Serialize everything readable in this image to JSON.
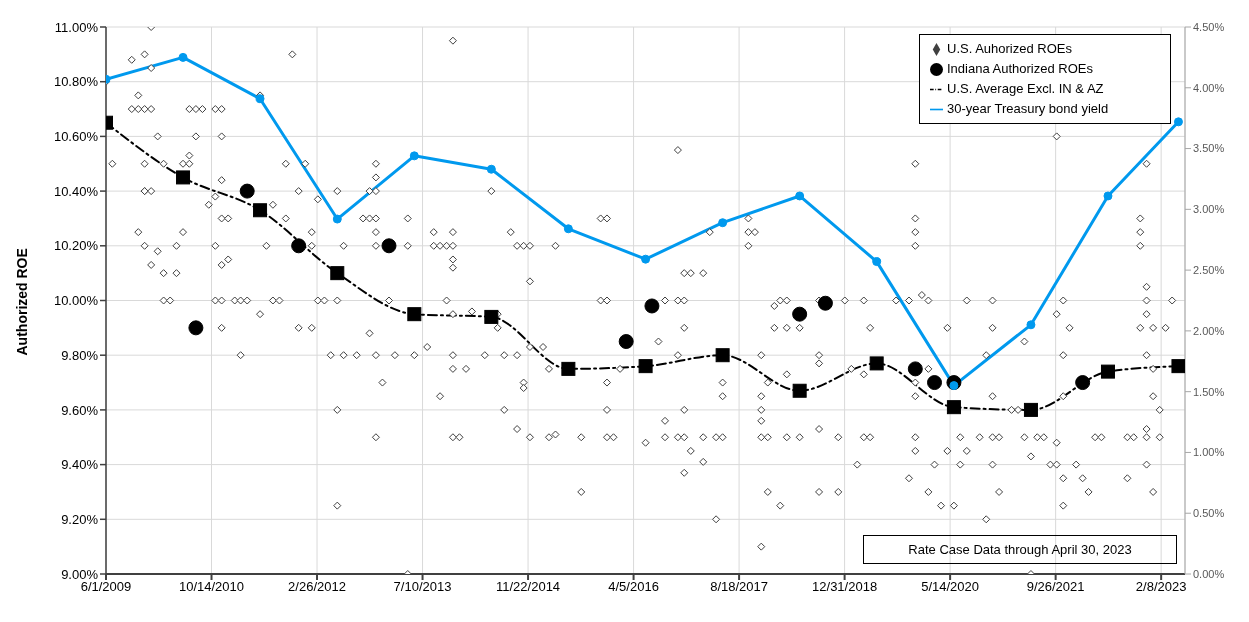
{
  "chart_data": {
    "type": "scatter",
    "ylabel": "Authorized ROE",
    "xlim": [
      "2009-06-01",
      "2023-06-01"
    ],
    "xticks": [
      {
        "value": "2009-06-01",
        "label": "6/1/2009"
      },
      {
        "value": "2010-10-14",
        "label": "10/14/2010"
      },
      {
        "value": "2012-02-26",
        "label": "2/26/2012"
      },
      {
        "value": "2013-07-10",
        "label": "7/10/2013"
      },
      {
        "value": "2014-11-22",
        "label": "11/22/2014"
      },
      {
        "value": "2016-04-05",
        "label": "4/5/2016"
      },
      {
        "value": "2017-08-18",
        "label": "8/18/2017"
      },
      {
        "value": "2018-12-31",
        "label": "12/31/2018"
      },
      {
        "value": "2020-05-14",
        "label": "5/14/2020"
      },
      {
        "value": "2021-09-26",
        "label": "9/26/2021"
      },
      {
        "value": "2023-02-08",
        "label": "2/8/2023"
      }
    ],
    "ylim": [
      9,
      11
    ],
    "yticks": [
      {
        "value": 9,
        "label": "9.00%"
      },
      {
        "value": 9.2,
        "label": "9.20%"
      },
      {
        "value": 9.4,
        "label": "9.40%"
      },
      {
        "value": 9.6,
        "label": "9.60%"
      },
      {
        "value": 9.8,
        "label": "9.80%"
      },
      {
        "value": 10,
        "label": "10.00%"
      },
      {
        "value": 10.2,
        "label": "10.20%"
      },
      {
        "value": 10.4,
        "label": "10.40%"
      },
      {
        "value": 10.6,
        "label": "10.60%"
      },
      {
        "value": 10.8,
        "label": "10.80%"
      },
      {
        "value": 11,
        "label": "11.00%"
      }
    ],
    "y2lim": [
      0,
      4.5
    ],
    "y2ticks": [
      {
        "value": 0,
        "label": "0.00%"
      },
      {
        "value": 0.5,
        "label": "0.50%"
      },
      {
        "value": 1,
        "label": "1.00%"
      },
      {
        "value": 1.5,
        "label": "1.50%"
      },
      {
        "value": 2,
        "label": "2.00%"
      },
      {
        "value": 2.5,
        "label": "2.50%"
      },
      {
        "value": 3,
        "label": "3.00%"
      },
      {
        "value": 3.5,
        "label": "3.50%"
      },
      {
        "value": 4,
        "label": "4.00%"
      },
      {
        "value": 4.5,
        "label": "4.50%"
      }
    ],
    "grid": true,
    "legend": "top right",
    "annotations": [
      "Rate Case Data through April 30, 2023"
    ],
    "series": [
      {
        "name": "U.S. Auhorized ROEs",
        "marker": "diamond",
        "color": "#404040",
        "x": [
          "2010-01",
          "2013-12",
          "2009-12",
          "2011-11",
          "2009-10",
          "2010-01",
          "2009-06",
          "2009-11",
          "2009-10",
          "2009-11",
          "2009-12",
          "2010-01",
          "2010-07",
          "2010-08",
          "2010-09",
          "2010-11",
          "2010-12",
          "2011-06",
          "2010-02",
          "2010-08",
          "2010-12",
          "2010-07",
          "2009-07",
          "2009-12",
          "2010-03",
          "2010-06",
          "2010-07",
          "2011-10",
          "2012-01",
          "2012-12",
          "2012-12",
          "2010-12",
          "2009-12",
          "2009-12",
          "2010-01",
          "2011-12",
          "2012-06",
          "2012-11",
          "2012-12",
          "2012-03",
          "2010-11",
          "2010-10",
          "2011-08",
          "2010-12",
          "2011-01",
          "2011-10",
          "2012-10",
          "2012-11",
          "2012-12",
          "2013-05",
          "2009-11",
          "2010-06",
          "2012-02",
          "2012-12",
          "2013-09",
          "2013-12",
          "2009-12",
          "2010-05",
          "2010-11",
          "2011-07",
          "2012-02",
          "2012-07",
          "2012-12",
          "2013-05",
          "2013-09",
          "2013-10",
          "2013-11",
          "2013-12",
          "2010-02",
          "2010-01",
          "2010-12",
          "2011-01",
          "2013-12",
          "2013-12",
          "2010-03",
          "2010-05",
          "2010-03",
          "2010-04",
          "2010-11",
          "2010-12",
          "2011-02",
          "2011-03",
          "2011-04",
          "2011-08",
          "2011-09",
          "2012-03",
          "2012-04",
          "2012-06",
          "2013-02",
          "2013-11",
          "2011-06",
          "2013-12",
          "2010-12",
          "2011-12",
          "2012-02",
          "2012-11",
          "2013-08",
          "2011-03",
          "2012-05",
          "2012-07",
          "2012-09",
          "2012-12",
          "2013-03",
          "2013-06",
          "2013-12",
          "2013-12",
          "2013-01",
          "2013-10",
          "2012-06",
          "2012-12",
          "2013-12",
          "2014-01",
          "2012-06",
          "2013-05",
          "2016-11",
          "2014-06",
          "2015-11",
          "2015-12",
          "2017-10",
          "2014-09",
          "2017-04",
          "2017-10",
          "2017-11",
          "2014-10",
          "2014-11",
          "2014-12",
          "2015-04",
          "2017-10",
          "2016-12",
          "2017-01",
          "2017-03",
          "2014-12",
          "2015-11",
          "2015-12",
          "2016-09",
          "2016-11",
          "2016-12",
          "2018-03",
          "2018-04",
          "2018-09",
          "2018-02",
          "2014-03",
          "2014-07",
          "2014-07",
          "2016-12",
          "2018-02",
          "2018-04",
          "2018-06",
          "2016-08",
          "2014-12",
          "2015-02",
          "2014-05",
          "2014-08",
          "2014-10",
          "2016-11",
          "2017-12",
          "2018-09",
          "2018-09",
          "2014-02",
          "2015-03",
          "2016-02",
          "2018-04",
          "2014-11",
          "2015-12",
          "2017-06",
          "2018-01",
          "2014-11",
          "2017-06",
          "2017-12",
          "2014-08",
          "2015-12",
          "2016-12",
          "2017-12",
          "2016-09",
          "2017-12",
          "2014-10",
          "2018-09",
          "2015-04",
          "2014-12",
          "2015-03",
          "2015-08",
          "2015-12",
          "2016-01",
          "2016-09",
          "2016-11",
          "2016-12",
          "2017-03",
          "2017-05",
          "2017-06",
          "2017-12",
          "2018-01",
          "2018-04",
          "2018-06",
          "2016-06",
          "2017-01",
          "2017-03",
          "2016-12",
          "2015-08",
          "2018-01",
          "2018-09",
          "2018-03",
          "2017-05",
          "2017-12",
          "2021-10",
          "2019-12",
          "2022-12",
          "2019-12",
          "2022-11",
          "2019-12",
          "2022-11",
          "2019-12",
          "2022-11",
          "2022-12",
          "2020-01",
          "2019-01",
          "2019-04",
          "2019-09",
          "2019-11",
          "2020-02",
          "2020-08",
          "2020-12",
          "2021-11",
          "2022-12",
          "2023-04",
          "2021-10",
          "2022-12",
          "2019-05",
          "2020-05",
          "2020-12",
          "2021-12",
          "2022-11",
          "2023-01",
          "2023-03",
          "2021-05",
          "2020-11",
          "2021-11",
          "2022-12",
          "2019-02",
          "2020-02",
          "2023-01",
          "2019-04",
          "2019-12",
          "2019-12",
          "2020-12",
          "2021-11",
          "2023-01",
          "2021-03",
          "2021-04",
          "2023-02",
          "2022-12",
          "2018-12",
          "2019-04",
          "2019-05",
          "2019-12",
          "2020-07",
          "2020-10",
          "2020-12",
          "2021-01",
          "2021-05",
          "2021-07",
          "2021-08",
          "2022-04",
          "2022-05",
          "2022-09",
          "2022-10",
          "2022-12",
          "2023-02",
          "2021-10",
          "2019-12",
          "2020-05",
          "2020-08",
          "2021-06",
          "2019-03",
          "2020-03",
          "2020-07",
          "2020-12",
          "2021-09",
          "2021-10",
          "2022-01",
          "2022-12",
          "2019-11",
          "2021-11",
          "2022-02",
          "2022-09",
          "2018-12",
          "2020-02",
          "2021-01",
          "2022-03",
          "2023-01",
          "2020-04",
          "2020-06",
          "2021-11",
          "2020-11",
          "2021-06"
        ],
        "values": [
          11.0,
          10.95,
          10.9,
          10.9,
          10.88,
          10.85,
          10.8,
          10.75,
          10.7,
          10.7,
          10.7,
          10.7,
          10.7,
          10.7,
          10.7,
          10.7,
          10.7,
          10.75,
          10.6,
          10.6,
          10.6,
          10.53,
          10.5,
          10.5,
          10.5,
          10.5,
          10.5,
          10.5,
          10.5,
          10.5,
          10.45,
          10.44,
          10.4,
          10.4,
          10.4,
          10.4,
          10.4,
          10.4,
          10.4,
          10.37,
          10.38,
          10.35,
          10.35,
          10.3,
          10.3,
          10.3,
          10.3,
          10.3,
          10.3,
          10.3,
          10.25,
          10.25,
          10.25,
          10.25,
          10.25,
          10.25,
          10.2,
          10.2,
          10.2,
          10.2,
          10.2,
          10.2,
          10.2,
          10.2,
          10.2,
          10.2,
          10.2,
          10.2,
          10.18,
          10.13,
          10.13,
          10.15,
          10.15,
          10.12,
          10.1,
          10.1,
          10.0,
          10.0,
          10.0,
          10.0,
          10.0,
          10.0,
          10.0,
          10.0,
          10.0,
          10.0,
          10.0,
          10.0,
          10.0,
          10.0,
          9.95,
          9.95,
          9.9,
          9.9,
          9.9,
          9.88,
          9.83,
          9.8,
          9.8,
          9.8,
          9.8,
          9.8,
          9.8,
          9.8,
          9.8,
          9.75,
          9.7,
          9.65,
          9.6,
          9.5,
          9.5,
          9.5,
          9.25,
          9.0,
          10.55,
          10.4,
          10.3,
          10.3,
          10.3,
          10.25,
          10.25,
          10.25,
          10.25,
          10.2,
          10.2,
          10.2,
          10.2,
          10.2,
          10.1,
          10.1,
          10.1,
          10.07,
          10.0,
          10.0,
          10.0,
          10.0,
          10.0,
          10.0,
          10.0,
          10.0,
          9.98,
          9.96,
          9.95,
          9.9,
          9.9,
          9.9,
          9.9,
          9.9,
          9.85,
          9.83,
          9.83,
          9.8,
          9.8,
          9.8,
          9.8,
          9.8,
          9.8,
          9.77,
          9.75,
          9.75,
          9.75,
          9.73,
          9.7,
          9.7,
          9.7,
          9.7,
          9.68,
          9.65,
          9.65,
          9.6,
          9.6,
          9.6,
          9.6,
          9.56,
          9.56,
          9.53,
          9.53,
          9.51,
          9.5,
          9.5,
          9.5,
          9.5,
          9.5,
          9.5,
          9.5,
          9.5,
          9.5,
          9.5,
          9.5,
          9.5,
          9.5,
          9.5,
          9.5,
          9.48,
          9.45,
          9.41,
          9.37,
          9.3,
          9.3,
          9.3,
          9.25,
          9.2,
          9.1,
          10.6,
          10.5,
          10.5,
          10.3,
          10.3,
          10.25,
          10.25,
          10.2,
          10.2,
          10.05,
          10.02,
          10.0,
          10.0,
          10.0,
          10.0,
          10.0,
          10.0,
          10.0,
          10.0,
          10.0,
          10.0,
          9.95,
          9.95,
          9.9,
          9.9,
          9.9,
          9.9,
          9.9,
          9.9,
          9.9,
          9.85,
          9.8,
          9.8,
          9.8,
          9.75,
          9.75,
          9.75,
          9.73,
          9.7,
          9.65,
          9.65,
          9.65,
          9.65,
          9.6,
          9.6,
          9.6,
          9.53,
          9.5,
          9.5,
          9.5,
          9.5,
          9.5,
          9.5,
          9.5,
          9.5,
          9.5,
          9.5,
          9.5,
          9.5,
          9.5,
          9.5,
          9.5,
          9.5,
          9.5,
          9.48,
          9.45,
          9.45,
          9.45,
          9.43,
          9.4,
          9.4,
          9.4,
          9.4,
          9.4,
          9.4,
          9.4,
          9.4,
          9.35,
          9.35,
          9.35,
          9.35,
          9.3,
          9.3,
          9.3,
          9.3,
          9.3,
          9.25,
          9.25,
          9.25,
          9.2,
          9.0
        ]
      },
      {
        "name": "Indiana Authorized ROEs",
        "marker": "circle",
        "color": "#000000",
        "x": [
          "2010-08",
          "2011-04",
          "2011-12",
          "2013-02",
          "2016-03",
          "2016-07",
          "2018-06",
          "2018-10",
          "2019-12",
          "2020-03",
          "2020-06",
          "2022-02"
        ],
        "values": [
          9.9,
          10.4,
          10.2,
          10.2,
          9.85,
          9.98,
          9.95,
          9.99,
          9.75,
          9.7,
          9.7,
          9.7
        ]
      },
      {
        "name": "U.S. Average Excl. IN & AZ",
        "type": "line",
        "marker": "square",
        "line_style": "dashed",
        "color": "#000000",
        "x": [
          "2009-06",
          "2010-06",
          "2011-06",
          "2012-06",
          "2013-06",
          "2014-06",
          "2015-06",
          "2016-06",
          "2017-06",
          "2018-06",
          "2019-06",
          "2020-06",
          "2021-06",
          "2022-06",
          "2023-05"
        ],
        "values": [
          10.65,
          10.45,
          10.33,
          10.1,
          9.95,
          9.94,
          9.75,
          9.76,
          9.8,
          9.67,
          9.77,
          9.61,
          9.6,
          9.74,
          9.76
        ]
      },
      {
        "name": "30-year Treasury bond yield",
        "type": "line",
        "axis": "y2",
        "marker": "circle",
        "line_style": "solid",
        "color": "#0099ee",
        "x": [
          "2009-06",
          "2010-06",
          "2011-06",
          "2012-06",
          "2013-06",
          "2014-06",
          "2015-06",
          "2016-06",
          "2017-06",
          "2018-06",
          "2019-06",
          "2020-06",
          "2021-06",
          "2022-06",
          "2023-05"
        ],
        "values": [
          4.07,
          4.25,
          3.91,
          2.92,
          3.44,
          3.33,
          2.84,
          2.59,
          2.89,
          3.11,
          2.57,
          1.55,
          2.05,
          3.11,
          3.72
        ]
      }
    ]
  }
}
